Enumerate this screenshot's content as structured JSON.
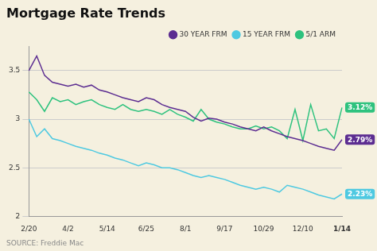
{
  "chart_data": {
    "type": "line",
    "title": "Mortgage Rate Trends",
    "source": "SOURCE: Freddie Mac",
    "categories": [
      "2/20",
      null,
      null,
      null,
      null,
      "4/2",
      null,
      null,
      null,
      null,
      "5/14",
      null,
      null,
      null,
      null,
      "6/25",
      null,
      null,
      null,
      null,
      "8/1",
      null,
      null,
      null,
      null,
      "9/17",
      null,
      null,
      null,
      null,
      "10/29",
      null,
      null,
      null,
      null,
      "12/10",
      null,
      null,
      null,
      null,
      "1/14"
    ],
    "series": [
      {
        "name": "30 YEAR FRM",
        "color": "#5c2d91",
        "values": [
          3.5,
          3.65,
          3.45,
          3.38,
          3.36,
          3.34,
          3.36,
          3.33,
          3.35,
          3.3,
          3.28,
          3.25,
          3.22,
          3.2,
          3.18,
          3.22,
          3.2,
          3.15,
          3.12,
          3.1,
          3.08,
          3.02,
          2.98,
          3.01,
          3.0,
          2.97,
          2.95,
          2.92,
          2.9,
          2.88,
          2.92,
          2.88,
          2.85,
          2.82,
          2.8,
          2.78,
          2.75,
          2.72,
          2.7,
          2.68,
          2.79
        ]
      },
      {
        "name": "15 YEAR FRM",
        "color": "#4ec9e1",
        "values": [
          3.0,
          2.82,
          2.9,
          2.8,
          2.78,
          2.75,
          2.72,
          2.7,
          2.68,
          2.65,
          2.63,
          2.6,
          2.58,
          2.55,
          2.52,
          2.55,
          2.53,
          2.5,
          2.5,
          2.48,
          2.45,
          2.42,
          2.4,
          2.42,
          2.4,
          2.38,
          2.35,
          2.32,
          2.3,
          2.28,
          2.3,
          2.28,
          2.25,
          2.32,
          2.3,
          2.28,
          2.25,
          2.22,
          2.2,
          2.18,
          2.23
        ]
      },
      {
        "name": "5/1 ARM",
        "color": "#2ec27e",
        "values": [
          3.28,
          3.2,
          3.08,
          3.22,
          3.18,
          3.2,
          3.15,
          3.18,
          3.2,
          3.15,
          3.12,
          3.1,
          3.15,
          3.1,
          3.08,
          3.1,
          3.08,
          3.05,
          3.1,
          3.05,
          3.02,
          2.98,
          3.1,
          3.0,
          2.97,
          2.95,
          2.92,
          2.9,
          2.9,
          2.93,
          2.9,
          2.92,
          2.88,
          2.8,
          3.1,
          2.78,
          3.15,
          2.88,
          2.9,
          2.8,
          3.12
        ]
      }
    ],
    "annotations": [
      {
        "text": "3.12%",
        "x": "1/14",
        "y": 3.12,
        "color": "#2ec27e"
      },
      {
        "text": "2.79%",
        "x": "1/14",
        "y": 2.79,
        "color": "#5c2d91"
      },
      {
        "text": "2.23%",
        "x": "1/14",
        "y": 2.23,
        "color": "#4ec9e1"
      }
    ],
    "ylim": [
      2,
      3.75
    ],
    "yticks": [
      2,
      2.5,
      3,
      3.5
    ],
    "grid": true,
    "legend": "upper right"
  }
}
